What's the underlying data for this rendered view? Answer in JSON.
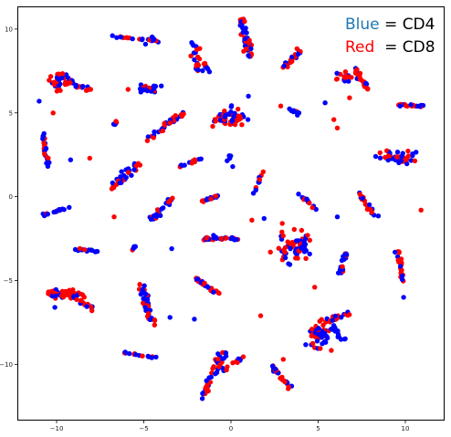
{
  "chart_data": {
    "type": "scatter",
    "title": "",
    "xlabel": "",
    "ylabel": "",
    "xlim": [
      -12.2,
      12.2
    ],
    "ylim": [
      -13.3,
      11.3
    ],
    "grid": false,
    "x_ticks": [
      -10,
      -5,
      0,
      5,
      10
    ],
    "y_ticks": [
      -10,
      -5,
      0,
      5,
      10
    ],
    "x_tick_labels": [
      "−10",
      "−5",
      "0",
      "5",
      "10"
    ],
    "y_tick_labels": [
      "−10",
      "−5",
      "0",
      "5",
      "10"
    ],
    "legend": {
      "position": "top-right",
      "entries": [
        {
          "label": "Blue",
          "sep": " = ",
          "name": "CD4",
          "color": "#1f77b4"
        },
        {
          "label": "Red",
          "sep": "  = ",
          "name": "CD8",
          "color": "#ff0000"
        }
      ]
    },
    "series": [
      {
        "name": "CD4",
        "color": "#0000ff"
      },
      {
        "name": "CD8",
        "color": "#ff0000"
      }
    ],
    "clusters": [
      {
        "shape": "line",
        "x1": -6.8,
        "y1": 9.6,
        "x2": -4.1,
        "y2": 9.3,
        "n": 20,
        "spread": 0.1,
        "frac_red": 0.5
      },
      {
        "shape": "line",
        "x1": -4.6,
        "y1": 9.6,
        "x2": -4.3,
        "y2": 9.3,
        "n": 5,
        "spread": 0.08,
        "frac_red": 0.2
      },
      {
        "shape": "blob",
        "cx": -9.9,
        "cy": 6.9,
        "rx": 0.6,
        "ry": 0.5,
        "n": 35,
        "frac_red": 0.5
      },
      {
        "shape": "line",
        "x1": -9.6,
        "y1": 6.8,
        "x2": -8.0,
        "y2": 6.4,
        "n": 20,
        "spread": 0.12,
        "frac_red": 0.5
      },
      {
        "shape": "blob",
        "cx": -4.7,
        "cy": 6.4,
        "rx": 0.6,
        "ry": 0.22,
        "n": 25,
        "frac_red": 0.3
      },
      {
        "shape": "line",
        "x1": -2.1,
        "y1": 9.2,
        "x2": -1.9,
        "y2": 7.5,
        "n": 22,
        "spread": 0.2,
        "frac_red": 0.5
      },
      {
        "shape": "line",
        "x1": -1.6,
        "y1": 8.0,
        "x2": -1.1,
        "y2": 7.4,
        "n": 8,
        "spread": 0.1,
        "frac_red": 0.5
      },
      {
        "shape": "line",
        "x1": 0.6,
        "y1": 10.7,
        "x2": 1.1,
        "y2": 8.3,
        "n": 45,
        "spread": 0.22,
        "frac_red": 0.5
      },
      {
        "shape": "line",
        "x1": 2.9,
        "y1": 7.6,
        "x2": 3.9,
        "y2": 8.7,
        "n": 22,
        "spread": 0.18,
        "frac_red": 0.5
      },
      {
        "shape": "blob",
        "cx": 6.5,
        "cy": 7.1,
        "rx": 0.5,
        "ry": 0.3,
        "n": 18,
        "frac_red": 0.6
      },
      {
        "shape": "line",
        "x1": 7.1,
        "y1": 7.6,
        "x2": 7.8,
        "y2": 6.4,
        "n": 25,
        "spread": 0.15,
        "frac_red": 0.6
      },
      {
        "shape": "line",
        "x1": -10.8,
        "y1": 3.8,
        "x2": -10.5,
        "y2": 1.9,
        "n": 25,
        "spread": 0.12,
        "frac_red": 0.5
      },
      {
        "shape": "line",
        "x1": -4.9,
        "y1": 3.4,
        "x2": -2.7,
        "y2": 5.0,
        "n": 35,
        "spread": 0.15,
        "frac_red": 0.4
      },
      {
        "shape": "line",
        "x1": -6.7,
        "y1": 4.3,
        "x2": -6.4,
        "y2": 4.7,
        "n": 5,
        "spread": 0.05,
        "frac_red": 0.4
      },
      {
        "shape": "blob",
        "cx": -0.1,
        "cy": 4.7,
        "rx": 0.9,
        "ry": 0.55,
        "n": 55,
        "frac_red": 0.5
      },
      {
        "shape": "line",
        "x1": 2.9,
        "y1": 5.4,
        "x2": 3.9,
        "y2": 5.0,
        "n": 12,
        "spread": 0.08,
        "frac_red": 0.3
      },
      {
        "shape": "line",
        "x1": 9.5,
        "y1": 5.5,
        "x2": 11.0,
        "y2": 5.4,
        "n": 20,
        "spread": 0.07,
        "frac_red": 0.6
      },
      {
        "shape": "blob",
        "cx": 9.6,
        "cy": 2.3,
        "rx": 1.0,
        "ry": 0.35,
        "n": 45,
        "frac_red": 0.5
      },
      {
        "shape": "line",
        "x1": -6.8,
        "y1": 0.6,
        "x2": -5.2,
        "y2": 2.0,
        "n": 35,
        "spread": 0.25,
        "frac_red": 0.5
      },
      {
        "shape": "line",
        "x1": -2.9,
        "y1": 1.8,
        "x2": -1.7,
        "y2": 2.3,
        "n": 12,
        "spread": 0.08,
        "frac_red": 0.5
      },
      {
        "shape": "line",
        "x1": 1.3,
        "y1": 0.1,
        "x2": 1.8,
        "y2": 1.5,
        "n": 12,
        "spread": 0.08,
        "frac_red": 0.5
      },
      {
        "shape": "blob",
        "cx": 0.0,
        "cy": 2.3,
        "rx": 0.15,
        "ry": 0.2,
        "n": 4,
        "frac_red": 0.0
      },
      {
        "shape": "line",
        "x1": -10.8,
        "y1": -1.1,
        "x2": -9.2,
        "y2": -0.6,
        "n": 22,
        "spread": 0.06,
        "frac_red": 0.2
      },
      {
        "shape": "line",
        "x1": -4.5,
        "y1": -1.4,
        "x2": -3.4,
        "y2": -0.1,
        "n": 28,
        "spread": 0.2,
        "frac_red": 0.3
      },
      {
        "shape": "line",
        "x1": -1.7,
        "y1": -0.3,
        "x2": -0.6,
        "y2": 0.1,
        "n": 15,
        "spread": 0.07,
        "frac_red": 0.4
      },
      {
        "shape": "line",
        "x1": 3.9,
        "y1": 0.2,
        "x2": 4.8,
        "y2": -0.7,
        "n": 14,
        "spread": 0.1,
        "frac_red": 0.3
      },
      {
        "shape": "line",
        "x1": 7.3,
        "y1": 0.2,
        "x2": 8.3,
        "y2": -1.2,
        "n": 22,
        "spread": 0.13,
        "frac_red": 0.7
      },
      {
        "shape": "line",
        "x1": -9.1,
        "y1": -3.1,
        "x2": -7.5,
        "y2": -3.3,
        "n": 16,
        "spread": 0.06,
        "frac_red": 0.3
      },
      {
        "shape": "line",
        "x1": -5.7,
        "y1": -3.2,
        "x2": -5.4,
        "y2": -2.9,
        "n": 5,
        "spread": 0.06,
        "frac_red": 0.3
      },
      {
        "shape": "line",
        "x1": -1.6,
        "y1": -2.5,
        "x2": 0.4,
        "y2": -2.5,
        "n": 30,
        "spread": 0.08,
        "frac_red": 0.6
      },
      {
        "shape": "blob",
        "cx": 3.6,
        "cy": -3.0,
        "rx": 0.85,
        "ry": 0.8,
        "n": 70,
        "frac_red": 0.5
      },
      {
        "shape": "line",
        "x1": 6.2,
        "y1": -4.6,
        "x2": 6.6,
        "y2": -3.3,
        "n": 18,
        "spread": 0.15,
        "frac_red": 0.3
      },
      {
        "shape": "line",
        "x1": 9.6,
        "y1": -3.3,
        "x2": 9.9,
        "y2": -5.2,
        "n": 25,
        "spread": 0.12,
        "frac_red": 0.6
      },
      {
        "shape": "blob",
        "cx": -9.5,
        "cy": -5.8,
        "rx": 0.9,
        "ry": 0.3,
        "n": 45,
        "frac_red": 0.6
      },
      {
        "shape": "line",
        "x1": -9.0,
        "y1": -6.0,
        "x2": -7.9,
        "y2": -6.7,
        "n": 20,
        "spread": 0.12,
        "frac_red": 0.6
      },
      {
        "shape": "line",
        "x1": -5.1,
        "y1": -5.4,
        "x2": -4.6,
        "y2": -7.5,
        "n": 45,
        "spread": 0.22,
        "frac_red": 0.5
      },
      {
        "shape": "line",
        "x1": -2.1,
        "y1": -4.8,
        "x2": -0.7,
        "y2": -5.8,
        "n": 25,
        "spread": 0.1,
        "frac_red": 0.5
      },
      {
        "shape": "blob",
        "cx": 5.1,
        "cy": -8.2,
        "rx": 0.7,
        "ry": 0.8,
        "n": 55,
        "frac_red": 0.5
      },
      {
        "shape": "line",
        "x1": 5.6,
        "y1": -7.4,
        "x2": 6.8,
        "y2": -7.0,
        "n": 18,
        "spread": 0.15,
        "frac_red": 0.6
      },
      {
        "shape": "line",
        "x1": 5.8,
        "y1": -7.8,
        "x2": 6.8,
        "y2": -8.9,
        "n": 12,
        "spread": 0.12,
        "frac_red": 0.3
      },
      {
        "shape": "line",
        "x1": -6.1,
        "y1": -9.3,
        "x2": -4.3,
        "y2": -9.6,
        "n": 16,
        "spread": 0.05,
        "frac_red": 0.3
      },
      {
        "shape": "line",
        "x1": -1.8,
        "y1": -12.1,
        "x2": -0.4,
        "y2": -9.3,
        "n": 50,
        "spread": 0.25,
        "frac_red": 0.5
      },
      {
        "shape": "line",
        "x1": -0.5,
        "y1": -10.5,
        "x2": 0.6,
        "y2": -9.6,
        "n": 12,
        "spread": 0.15,
        "frac_red": 0.4
      },
      {
        "shape": "line",
        "x1": 2.4,
        "y1": -10.1,
        "x2": 3.6,
        "y2": -11.7,
        "n": 30,
        "spread": 0.12,
        "frac_red": 0.6
      }
    ],
    "outliers": [
      {
        "x": -11.0,
        "y": 5.7,
        "c": "b"
      },
      {
        "x": -10.2,
        "y": 5.0,
        "c": "r"
      },
      {
        "x": -9.2,
        "y": 2.2,
        "c": "b"
      },
      {
        "x": -8.1,
        "y": 2.3,
        "c": "r"
      },
      {
        "x": -6.6,
        "y": 4.5,
        "c": "r"
      },
      {
        "x": -2.3,
        "y": 8.4,
        "c": "r"
      },
      {
        "x": -4.9,
        "y": 9.1,
        "c": "b"
      },
      {
        "x": -5.9,
        "y": 6.4,
        "c": "r"
      },
      {
        "x": 5.4,
        "y": 5.6,
        "c": "b"
      },
      {
        "x": 5.9,
        "y": 4.6,
        "c": "r"
      },
      {
        "x": 6.1,
        "y": 4.1,
        "c": "r"
      },
      {
        "x": 6.8,
        "y": 5.9,
        "c": "r"
      },
      {
        "x": 8.3,
        "y": 2.4,
        "c": "b"
      },
      {
        "x": 0.1,
        "y": 1.8,
        "c": "b"
      },
      {
        "x": -1.0,
        "y": -2.3,
        "c": "b"
      },
      {
        "x": 1.2,
        "y": -1.4,
        "c": "r"
      },
      {
        "x": 1.9,
        "y": -1.3,
        "c": "b"
      },
      {
        "x": 6.1,
        "y": -1.2,
        "c": "b"
      },
      {
        "x": -6.7,
        "y": -1.2,
        "c": "r"
      },
      {
        "x": -3.4,
        "y": -3.1,
        "c": "b"
      },
      {
        "x": 10.9,
        "y": -0.8,
        "c": "r"
      },
      {
        "x": 4.8,
        "y": -5.4,
        "c": "r"
      },
      {
        "x": 9.9,
        "y": -6.0,
        "c": "b"
      },
      {
        "x": 1.7,
        "y": -7.1,
        "c": "r"
      },
      {
        "x": -2.1,
        "y": -7.3,
        "c": "b"
      },
      {
        "x": -10.1,
        "y": -6.6,
        "c": "b"
      },
      {
        "x": -3.5,
        "y": -7.2,
        "c": "b"
      },
      {
        "x": 3.0,
        "y": -9.7,
        "c": "r"
      },
      {
        "x": -3.5,
        "y": 4.4,
        "c": "r"
      },
      {
        "x": 1.0,
        "y": 6.0,
        "c": "b"
      },
      {
        "x": 3.3,
        "y": -4.0,
        "c": "b"
      },
      {
        "x": 4.4,
        "y": -2.3,
        "c": "r"
      }
    ]
  }
}
